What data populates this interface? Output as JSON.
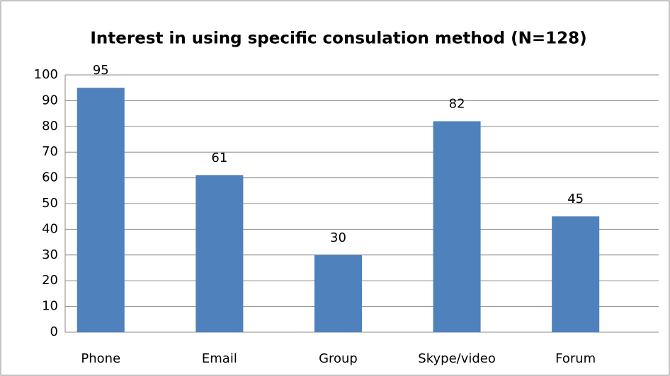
{
  "chart_data": {
    "type": "bar",
    "title": "Interest in using specific consulation method (N=128)",
    "categories": [
      "Phone",
      "Email",
      "Group",
      "Skype/video",
      "Forum"
    ],
    "values": [
      95,
      61,
      30,
      82,
      45
    ],
    "color": "#4f81bd",
    "ylim": [
      0,
      100
    ],
    "yticks": [
      0,
      10,
      20,
      30,
      40,
      50,
      60,
      70,
      80,
      90,
      100
    ],
    "grid": true
  }
}
